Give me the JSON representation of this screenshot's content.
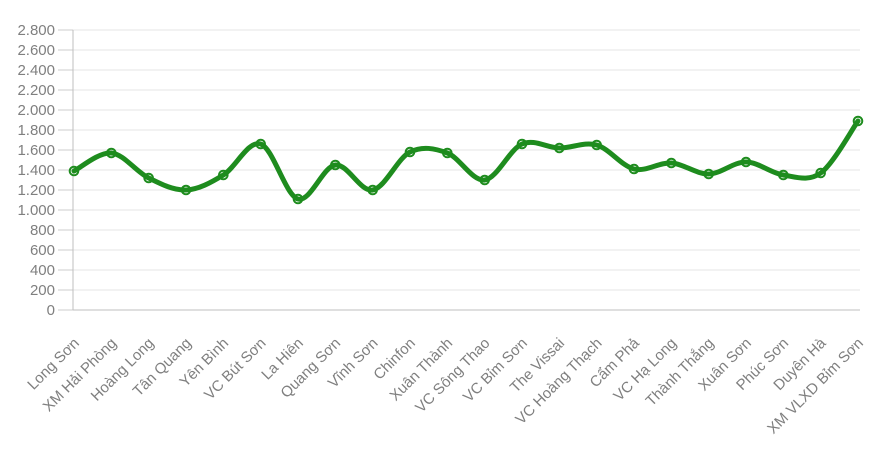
{
  "chart_data": {
    "type": "line",
    "title": "",
    "xlabel": "",
    "ylabel": "",
    "categories": [
      "Long Sơn",
      "XM Hải Phòng",
      "Hoàng Long",
      "Tân Quang",
      "Yên Bình",
      "VC Bút Sơn",
      "La Hiên",
      "Quang Sơn",
      "Vĩnh Sơn",
      "Chinfon",
      "Xuân Thành",
      "VC Sông Thao",
      "VC Bỉm Sơn",
      "The Vissai",
      "VC Hoàng Thạch",
      "Cẩm Phả",
      "VC Hạ Long",
      "Thành Thắng",
      "Xuân Sơn",
      "Phúc Sơn",
      "Duyên Hà",
      "XM VLXD Bỉm Sơn"
    ],
    "values": [
      1390,
      1570,
      1320,
      1200,
      1350,
      1660,
      1110,
      1450,
      1200,
      1580,
      1570,
      1300,
      1660,
      1620,
      1650,
      1410,
      1470,
      1360,
      1480,
      1350,
      1370,
      1890
    ],
    "ylim": [
      0,
      2800
    ],
    "y_tick_step": 200,
    "y_tick_labels": [
      "0",
      "200",
      "400",
      "600",
      "800",
      "1.000",
      "1.200",
      "1.400",
      "1.600",
      "1.800",
      "2.000",
      "2.200",
      "2.400",
      "2.600",
      "2.800"
    ],
    "grid": true,
    "smooth": true,
    "marker": "hollow-circle",
    "legend": "none",
    "colors": {
      "line": "#1e8c1e",
      "marker_stroke": "#1e8c1e",
      "gridline": "#e4e4e4",
      "axis": "#bfbfbf",
      "tick": "#cccccc",
      "label": "#7f7f7f",
      "background": "#ffffff"
    }
  }
}
